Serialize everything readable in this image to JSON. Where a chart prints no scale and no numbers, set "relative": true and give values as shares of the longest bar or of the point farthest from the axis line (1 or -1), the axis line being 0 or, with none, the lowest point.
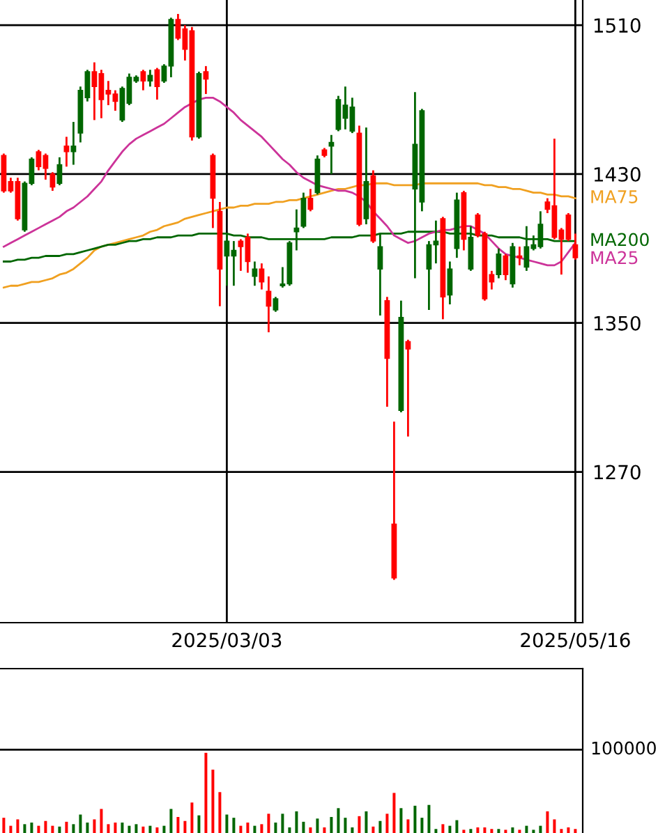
{
  "chart_data": [
    {
      "type": "candlestick",
      "categories": [
        null,
        null,
        null,
        null,
        null,
        null,
        null,
        null,
        null,
        null,
        null,
        null,
        null,
        null,
        null,
        null,
        null,
        null,
        null,
        null,
        null,
        null,
        null,
        null,
        null,
        null,
        null,
        null,
        null,
        null,
        null,
        null,
        "2025/03/03",
        null,
        null,
        null,
        null,
        null,
        null,
        null,
        null,
        null,
        null,
        null,
        null,
        null,
        null,
        null,
        null,
        null,
        null,
        null,
        null,
        null,
        null,
        null,
        null,
        null,
        null,
        null,
        null,
        null,
        null,
        null,
        null,
        null,
        null,
        null,
        null,
        null,
        null,
        null,
        null,
        null,
        null,
        null,
        null,
        null,
        null,
        null,
        null,
        null,
        "2025/05/16"
      ],
      "ohlc": [
        [
          1440,
          1441,
          1420,
          1421
        ],
        [
          1426,
          1428,
          1420,
          1421
        ],
        [
          1426,
          1428,
          1405,
          1406
        ],
        [
          1400,
          1426,
          1399,
          1425
        ],
        [
          1425,
          1439,
          1424,
          1438
        ],
        [
          1442,
          1443,
          1432,
          1434
        ],
        [
          1440,
          1441,
          1427,
          1433
        ],
        [
          1430,
          1431,
          1421,
          1423
        ],
        [
          1425,
          1439,
          1424,
          1435
        ],
        [
          1445,
          1450,
          1434,
          1442
        ],
        [
          1442,
          1458,
          1435,
          1445
        ],
        [
          1452,
          1477,
          1447,
          1475
        ],
        [
          1471,
          1486,
          1469,
          1485
        ],
        [
          1485,
          1490,
          1459,
          1477
        ],
        [
          1484,
          1486,
          1460,
          1470
        ],
        [
          1475,
          1480,
          1467,
          1473
        ],
        [
          1473,
          1475,
          1464,
          1469
        ],
        [
          1459,
          1477,
          1458,
          1476
        ],
        [
          1468,
          1484,
          1467,
          1482
        ],
        [
          1480,
          1483,
          1479,
          1482
        ],
        [
          1485,
          1486,
          1475,
          1480
        ],
        [
          1480,
          1486,
          1477,
          1483
        ],
        [
          1486,
          1487,
          1470,
          1477
        ],
        [
          1480,
          1489,
          1479,
          1488
        ],
        [
          1488,
          1514,
          1482,
          1513
        ],
        [
          1513,
          1516,
          1502,
          1503
        ],
        [
          1508,
          1510,
          1491,
          1497
        ],
        [
          1507,
          1509,
          1448,
          1450
        ],
        [
          1450,
          1485,
          1449,
          1484
        ],
        [
          1485,
          1488,
          1473,
          1481
        ],
        [
          1440,
          1441,
          1401,
          1417
        ],
        [
          1410,
          1415,
          1359,
          1379
        ],
        [
          1386,
          1398,
          1370,
          1394
        ],
        [
          1386,
          1394,
          1370,
          1389
        ],
        [
          1394,
          1395,
          1378,
          1391
        ],
        [
          1396,
          1398,
          1377,
          1383
        ],
        [
          1375,
          1383,
          1370,
          1379
        ],
        [
          1379,
          1382,
          1368,
          1372
        ],
        [
          1367,
          1375,
          1345,
          1359
        ],
        [
          1357,
          1364,
          1356,
          1363
        ],
        [
          1370,
          1380,
          1369,
          1371
        ],
        [
          1371,
          1394,
          1370,
          1393
        ],
        [
          1399,
          1411,
          1389,
          1401
        ],
        [
          1402,
          1420,
          1401,
          1417
        ],
        [
          1417,
          1422,
          1410,
          1411
        ],
        [
          1420,
          1440,
          1419,
          1438
        ],
        [
          1443,
          1444,
          1439,
          1440
        ],
        [
          1445,
          1451,
          1430,
          1447
        ],
        [
          1454,
          1472,
          1453,
          1470
        ],
        [
          1460,
          1477,
          1454,
          1467
        ],
        [
          1453,
          1471,
          1452,
          1466
        ],
        [
          1452,
          1456,
          1402,
          1403
        ],
        [
          1406,
          1455,
          1403,
          1426
        ],
        [
          1429,
          1432,
          1393,
          1394
        ],
        [
          1379,
          1398,
          1354,
          1391
        ],
        [
          1362,
          1364,
          1305,
          1331
        ],
        [
          1242,
          1297,
          1212,
          1213
        ],
        [
          1303,
          1362,
          1302,
          1353
        ],
        [
          1340,
          1341,
          1289,
          1336
        ],
        [
          1422,
          1474,
          1374,
          1446
        ],
        [
          1415,
          1465,
          1410,
          1464
        ],
        [
          1379,
          1394,
          1357,
          1392
        ],
        [
          1392,
          1405,
          1382,
          1394
        ],
        [
          1406,
          1407,
          1352,
          1364
        ],
        [
          1365,
          1383,
          1360,
          1379
        ],
        [
          1390,
          1420,
          1385,
          1416
        ],
        [
          1420,
          1421,
          1389,
          1395
        ],
        [
          1379,
          1402,
          1378,
          1396
        ],
        [
          1408,
          1409,
          1396,
          1397
        ],
        [
          1398,
          1399,
          1362,
          1363
        ],
        [
          1376,
          1378,
          1368,
          1372
        ],
        [
          1376,
          1390,
          1374,
          1387
        ],
        [
          1386,
          1387,
          1373,
          1376
        ],
        [
          1371,
          1393,
          1369,
          1391
        ],
        [
          1386,
          1391,
          1381,
          1385
        ],
        [
          1380,
          1402,
          1378,
          1391
        ],
        [
          1390,
          1397,
          1389,
          1392
        ],
        [
          1391,
          1410,
          1390,
          1403
        ],
        [
          1415,
          1417,
          1409,
          1411
        ],
        [
          1413,
          1449,
          1395,
          1396
        ],
        [
          1400,
          1401,
          1376,
          1395
        ],
        [
          1408,
          1409,
          1394,
          1395
        ],
        [
          1392,
          1398,
          1384,
          1385
        ]
      ],
      "colors": [
        "#ff0000",
        "#ff0000",
        "#ff0000",
        "#006600",
        "#006600",
        "#ff0000",
        "#ff0000",
        "#ff0000",
        "#006600",
        "#ff0000",
        "#006600",
        "#006600",
        "#006600",
        "#ff0000",
        "#ff0000",
        "#ff0000",
        "#ff0000",
        "#006600",
        "#006600",
        "#006600",
        "#ff0000",
        "#006600",
        "#ff0000",
        "#006600",
        "#006600",
        "#ff0000",
        "#ff0000",
        "#ff0000",
        "#006600",
        "#ff0000",
        "#ff0000",
        "#ff0000",
        "#006600",
        "#006600",
        "#ff0000",
        "#ff0000",
        "#006600",
        "#ff0000",
        "#ff0000",
        "#006600",
        "#006600",
        "#006600",
        "#006600",
        "#006600",
        "#ff0000",
        "#006600",
        "#ff0000",
        "#006600",
        "#006600",
        "#006600",
        "#006600",
        "#ff0000",
        "#006600",
        "#ff0000",
        "#006600",
        "#ff0000",
        "#ff0000",
        "#006600",
        "#ff0000",
        "#006600",
        "#006600",
        "#006600",
        "#006600",
        "#ff0000",
        "#006600",
        "#006600",
        "#ff0000",
        "#006600",
        "#ff0000",
        "#ff0000",
        "#ff0000",
        "#006600",
        "#ff0000",
        "#006600",
        "#ff0000",
        "#006600",
        "#006600",
        "#006600",
        "#ff0000",
        "#ff0000",
        "#ff0000",
        "#ff0000",
        "#ff0000"
      ],
      "series": [
        {
          "type": "line",
          "name": "MA75",
          "color": "#f0a020",
          "values": [
            1369,
            1370,
            1370,
            1371,
            1372,
            1372,
            1373,
            1374,
            1376,
            1377,
            1379,
            1382,
            1385,
            1389,
            1391,
            1392,
            1393,
            1394,
            1395,
            1396,
            1397,
            1399,
            1400,
            1402,
            1403,
            1404,
            1406,
            1407,
            1408,
            1409,
            1410,
            1411,
            1412,
            1412,
            1413,
            1413,
            1414,
            1414,
            1414,
            1415,
            1415,
            1416,
            1416,
            1417,
            1418,
            1419,
            1420,
            1421,
            1422,
            1422,
            1423,
            1424,
            1424,
            1425,
            1425,
            1425,
            1424,
            1424,
            1424,
            1424,
            1425,
            1425,
            1425,
            1425,
            1425,
            1425,
            1425,
            1425,
            1425,
            1424,
            1424,
            1423,
            1423,
            1422,
            1422,
            1421,
            1420,
            1420,
            1419,
            1419,
            1418,
            1418,
            1417
          ]
        },
        {
          "type": "line",
          "name": "MA200",
          "color": "#006600",
          "values": [
            1383,
            1383,
            1384,
            1384,
            1385,
            1385,
            1386,
            1386,
            1386,
            1387,
            1387,
            1388,
            1389,
            1390,
            1391,
            1392,
            1392,
            1393,
            1394,
            1394,
            1395,
            1395,
            1396,
            1396,
            1396,
            1397,
            1397,
            1397,
            1398,
            1398,
            1398,
            1398,
            1398,
            1397,
            1397,
            1396,
            1396,
            1396,
            1395,
            1395,
            1395,
            1395,
            1395,
            1395,
            1395,
            1395,
            1395,
            1396,
            1396,
            1396,
            1396,
            1397,
            1397,
            1397,
            1398,
            1398,
            1398,
            1398,
            1399,
            1399,
            1399,
            1399,
            1399,
            1399,
            1398,
            1398,
            1398,
            1398,
            1397,
            1397,
            1397,
            1396,
            1396,
            1396,
            1396,
            1395,
            1395,
            1395,
            1395,
            1394,
            1394,
            1394,
            1394
          ]
        },
        {
          "type": "line",
          "name": "MA25",
          "color": "#cc3399",
          "values": [
            1391,
            1393,
            1395,
            1397,
            1399,
            1401,
            1403,
            1405,
            1407,
            1410,
            1412,
            1415,
            1418,
            1422,
            1426,
            1432,
            1437,
            1442,
            1446,
            1449,
            1451,
            1453,
            1455,
            1457,
            1460,
            1463,
            1466,
            1468,
            1470,
            1471,
            1471,
            1469,
            1466,
            1463,
            1459,
            1456,
            1453,
            1450,
            1446,
            1442,
            1438,
            1435,
            1431,
            1428,
            1426,
            1424,
            1423,
            1422,
            1421,
            1421,
            1420,
            1418,
            1415,
            1410,
            1406,
            1402,
            1397,
            1395,
            1393,
            1394,
            1396,
            1398,
            1399,
            1400,
            1400,
            1401,
            1402,
            1402,
            1400,
            1398,
            1394,
            1390,
            1387,
            1386,
            1385,
            1384,
            1383,
            1382,
            1381,
            1381,
            1383,
            1388,
            1393
          ]
        }
      ],
      "ylim": [
        1189,
        1523.5
      ],
      "yticks": [
        1270,
        1350,
        1430,
        1510
      ],
      "grid": true
    },
    {
      "type": "bar",
      "categories": [
        null,
        null,
        null,
        null,
        null,
        null,
        null,
        null,
        null,
        null,
        null,
        null,
        null,
        null,
        null,
        null,
        null,
        null,
        null,
        null,
        null,
        null,
        null,
        null,
        null,
        null,
        null,
        null,
        null,
        null,
        null,
        null,
        null,
        null,
        null,
        null,
        null,
        null,
        null,
        null,
        null,
        null,
        null,
        null,
        null,
        null,
        null,
        null,
        null,
        null,
        null,
        null,
        null,
        null,
        null,
        null,
        null,
        null,
        null,
        null,
        null,
        null,
        null,
        null,
        null,
        null,
        null,
        null,
        null,
        null,
        null,
        null,
        null,
        null,
        null,
        null,
        null,
        null,
        null,
        null,
        null,
        null,
        null
      ],
      "relative": true,
      "values": [
        0.19,
        0.09,
        0.17,
        0.11,
        0.13,
        0.09,
        0.15,
        0.09,
        0.08,
        0.14,
        0.11,
        0.23,
        0.13,
        0.17,
        0.3,
        0.11,
        0.13,
        0.13,
        0.09,
        0.11,
        0.08,
        0.09,
        0.07,
        0.09,
        0.3,
        0.2,
        0.15,
        0.38,
        0.22,
        1,
        0.79,
        0.51,
        0.23,
        0.19,
        0.09,
        0.13,
        0.09,
        0.11,
        0.24,
        0.13,
        0.24,
        0.07,
        0.27,
        0.14,
        0.07,
        0.18,
        0.07,
        0.2,
        0.31,
        0.19,
        0.07,
        0.21,
        0.27,
        0.08,
        0.15,
        0.24,
        0.5,
        0.31,
        0.17,
        0.34,
        0.19,
        0.35,
        0.05,
        0.11,
        0.09,
        0.16,
        0.04,
        0.05,
        0.07,
        0.07,
        0.05,
        0.05,
        0.04,
        0.07,
        0.04,
        0.09,
        0.04,
        0.09,
        0.27,
        0.17,
        0.05,
        0.07,
        0.05
      ],
      "ref_lines": [
        {
          "axis": "y",
          "value": 1.04
        }
      ],
      "annotations": [
        "100000"
      ],
      "colors": [
        "#ff0000",
        "#ff0000",
        "#ff0000",
        "#006600",
        "#006600",
        "#ff0000",
        "#ff0000",
        "#ff0000",
        "#006600",
        "#ff0000",
        "#006600",
        "#006600",
        "#006600",
        "#ff0000",
        "#ff0000",
        "#ff0000",
        "#ff0000",
        "#006600",
        "#006600",
        "#006600",
        "#ff0000",
        "#006600",
        "#ff0000",
        "#006600",
        "#006600",
        "#ff0000",
        "#ff0000",
        "#ff0000",
        "#006600",
        "#ff0000",
        "#ff0000",
        "#ff0000",
        "#006600",
        "#006600",
        "#ff0000",
        "#ff0000",
        "#006600",
        "#ff0000",
        "#ff0000",
        "#006600",
        "#006600",
        "#006600",
        "#006600",
        "#006600",
        "#ff0000",
        "#006600",
        "#ff0000",
        "#006600",
        "#006600",
        "#006600",
        "#006600",
        "#ff0000",
        "#006600",
        "#ff0000",
        "#006600",
        "#ff0000",
        "#ff0000",
        "#006600",
        "#ff0000",
        "#006600",
        "#006600",
        "#006600",
        "#006600",
        "#ff0000",
        "#006600",
        "#006600",
        "#ff0000",
        "#006600",
        "#ff0000",
        "#ff0000",
        "#ff0000",
        "#006600",
        "#ff0000",
        "#006600",
        "#ff0000",
        "#006600",
        "#006600",
        "#006600",
        "#ff0000",
        "#ff0000",
        "#ff0000",
        "#ff0000",
        "#ff0000"
      ],
      "grid": false
    }
  ]
}
